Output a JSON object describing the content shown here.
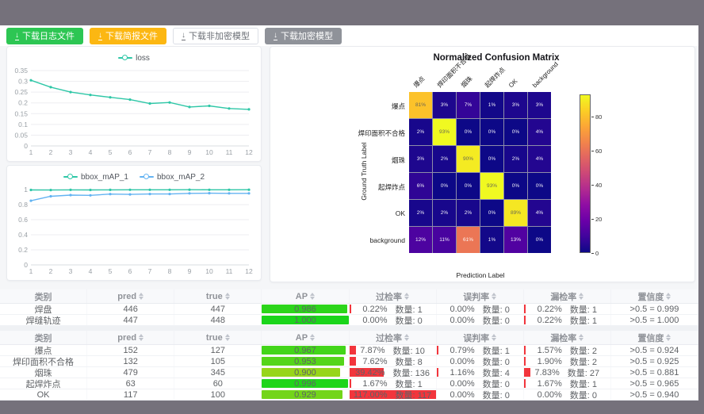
{
  "toolbar": {
    "buttons": [
      {
        "label": "下载日志文件",
        "style": "success"
      },
      {
        "label": "下载简报文件",
        "style": "warning"
      },
      {
        "label": "下载非加密模型",
        "style": "plain"
      },
      {
        "label": "下载加密模型",
        "style": "info"
      }
    ]
  },
  "colors": {
    "button_success": "#2dc653",
    "button_warning": "#fcb712",
    "button_info": "#8f9299",
    "bar_red": "#f2353c",
    "line_teal": "#2fc7a7",
    "line_blue": "#63b3f2",
    "frame_gray": "#75717b"
  },
  "chart_data": [
    {
      "id": "loss",
      "type": "line",
      "x": [
        1,
        2,
        3,
        4,
        5,
        6,
        7,
        8,
        9,
        10,
        11,
        12
      ],
      "series": [
        {
          "name": "loss",
          "color": "#2fc7a7",
          "values": [
            0.305,
            0.273,
            0.25,
            0.237,
            0.226,
            0.215,
            0.197,
            0.202,
            0.181,
            0.186,
            0.174,
            0.17
          ]
        }
      ],
      "y_ticks": [
        0,
        0.05,
        0.1,
        0.15,
        0.2,
        0.25,
        0.3,
        0.35
      ],
      "y_tick_labels": [
        "0",
        "0.05",
        "0.1",
        "0.15",
        "0.2",
        "0.25",
        "0.3",
        "0.35"
      ],
      "ymax": 0.35,
      "legend_position": "top",
      "grid": true
    },
    {
      "id": "map",
      "type": "line",
      "x": [
        1,
        2,
        3,
        4,
        5,
        6,
        7,
        8,
        9,
        10,
        11,
        12
      ],
      "series": [
        {
          "name": "bbox_mAP_1",
          "color": "#2fc7a7",
          "values": [
            0.995,
            0.994,
            0.996,
            0.995,
            0.996,
            0.997,
            0.997,
            0.997,
            0.998,
            0.997,
            0.997,
            0.998
          ]
        },
        {
          "name": "bbox_mAP_2",
          "color": "#63b3f2",
          "values": [
            0.852,
            0.91,
            0.926,
            0.923,
            0.94,
            0.936,
            0.941,
            0.941,
            0.95,
            0.952,
            0.949,
            0.95
          ]
        }
      ],
      "y_ticks": [
        0,
        0.2,
        0.4,
        0.6,
        0.8,
        1
      ],
      "y_tick_labels": [
        "0",
        "0.2",
        "0.4",
        "0.6",
        "0.8",
        "1"
      ],
      "ymax": 1,
      "legend_position": "top",
      "grid": true
    },
    {
      "id": "confusion",
      "type": "heatmap",
      "title": "Normalized Confusion Matrix",
      "classes": [
        "爆点",
        "焊印面积不合格",
        "烟珠",
        "起焊炸点",
        "OK",
        "background"
      ],
      "matrix": [
        [
          81,
          3,
          7,
          1,
          3,
          3
        ],
        [
          2,
          93,
          0,
          0,
          0,
          4
        ],
        [
          3,
          2,
          90,
          0,
          2,
          4
        ],
        [
          6,
          0,
          0,
          93,
          0,
          0
        ],
        [
          2,
          2,
          2,
          0,
          89,
          4
        ],
        [
          12,
          11,
          61,
          1,
          13,
          0
        ]
      ],
      "unit": "%",
      "xlabel": "Prediction Label",
      "ylabel": "Ground Truth Label",
      "vmax": 93,
      "colorbar_ticks": [
        0,
        20,
        40,
        60,
        80
      ],
      "colormap": "plasma"
    }
  ],
  "tables": {
    "headers": {
      "class": "类别",
      "pred": "pred",
      "true": "true",
      "ap": "AP",
      "overkill": "过检率",
      "misjudge": "误判率",
      "miss": "漏检率",
      "confidence": "置信度"
    },
    "count_label": "数量",
    "table1_rows": [
      {
        "name": "焊盘",
        "pred": "446",
        "true": "447",
        "ap": "0.986",
        "overkill_pct": "0.22%",
        "overkill_n": "1",
        "misjudge_pct": "0.00%",
        "misjudge_n": "0",
        "miss_pct": "0.22%",
        "miss_n": "1",
        "confidence": ">0.5 = 0.999"
      },
      {
        "name": "焊缝轨迹",
        "pred": "447",
        "true": "448",
        "ap": "1.000",
        "overkill_pct": "0.00%",
        "overkill_n": "0",
        "misjudge_pct": "0.00%",
        "misjudge_n": "0",
        "miss_pct": "0.22%",
        "miss_n": "1",
        "confidence": ">0.5 = 1.000"
      }
    ],
    "table2_rows": [
      {
        "name": "爆点",
        "pred": "152",
        "true": "127",
        "ap": "0.967",
        "overkill_pct": "7.87%",
        "overkill_n": "10",
        "misjudge_pct": "0.79%",
        "misjudge_n": "1",
        "miss_pct": "1.57%",
        "miss_n": "2",
        "confidence": ">0.5 = 0.924"
      },
      {
        "name": "焊印面积不合格",
        "pred": "132",
        "true": "105",
        "ap": "0.953",
        "overkill_pct": "7.62%",
        "overkill_n": "8",
        "misjudge_pct": "0.00%",
        "misjudge_n": "0",
        "miss_pct": "1.90%",
        "miss_n": "2",
        "confidence": ">0.5 = 0.925"
      },
      {
        "name": "烟珠",
        "pred": "479",
        "true": "345",
        "ap": "0.900",
        "overkill_pct": "39.42%",
        "overkill_n": "136",
        "misjudge_pct": "1.16%",
        "misjudge_n": "4",
        "miss_pct": "7.83%",
        "miss_n": "27",
        "confidence": ">0.5 = 0.881"
      },
      {
        "name": "起焊炸点",
        "pred": "63",
        "true": "60",
        "ap": "0.996",
        "overkill_pct": "1.67%",
        "overkill_n": "1",
        "misjudge_pct": "0.00%",
        "misjudge_n": "0",
        "miss_pct": "1.67%",
        "miss_n": "1",
        "confidence": ">0.5 = 0.965"
      },
      {
        "name": "OK",
        "pred": "117",
        "true": "100",
        "ap": "0.929",
        "overkill_pct": "117.00%",
        "overkill_n": "117",
        "misjudge_pct": "0.00%",
        "misjudge_n": "0",
        "miss_pct": "0.00%",
        "miss_n": "0",
        "confidence": ">0.5 = 0.940"
      }
    ]
  }
}
